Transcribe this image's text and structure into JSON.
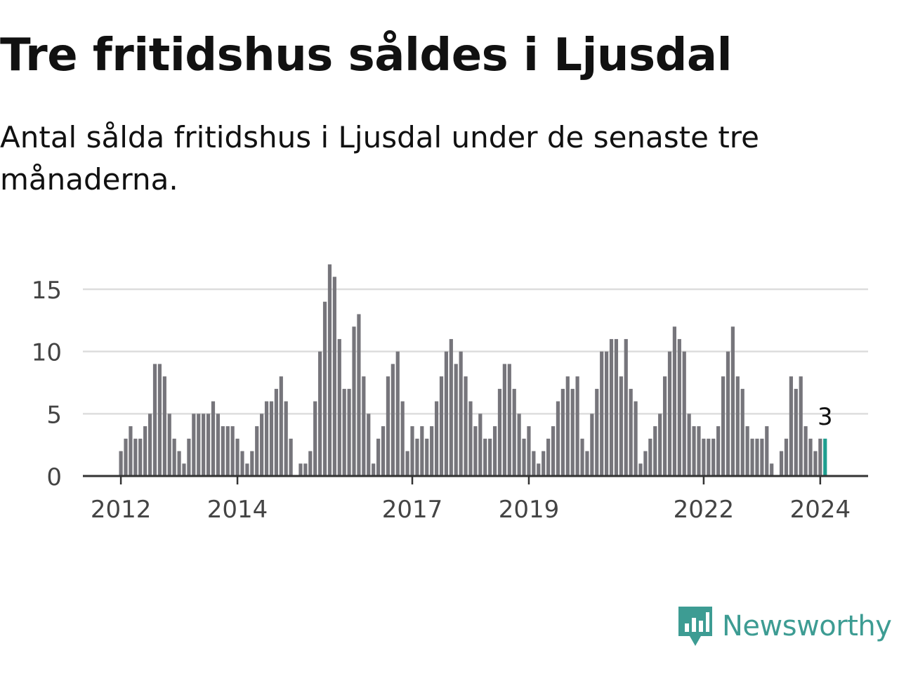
{
  "header": {
    "title": "Tre fritidshus såldes i Ljusdal",
    "subtitle": "Antal sålda fritidshus i Ljusdal under de senaste tre månaderna."
  },
  "brand": {
    "name": "Newsworthy",
    "color": "#3d9c93"
  },
  "colors": {
    "bar": "#76757b",
    "highlight": "#1e9e8f",
    "grid": "#dddddd",
    "axis": "#333333"
  },
  "chart_data": {
    "type": "bar",
    "title": "Tre fritidshus såldes i Ljusdal",
    "subtitle": "Antal sålda fritidshus i Ljusdal under de senaste tre månaderna.",
    "xlabel": "",
    "ylabel": "",
    "ylim": [
      0,
      17
    ],
    "yticks": [
      0,
      5,
      10,
      15
    ],
    "xtick_labels": [
      "2012",
      "2014",
      "2017",
      "2019",
      "2022",
      "2024"
    ],
    "grid": true,
    "start": "2012-01",
    "frequency": "monthly",
    "values": [
      2,
      3,
      4,
      3,
      3,
      4,
      5,
      9,
      9,
      8,
      5,
      3,
      2,
      1,
      3,
      5,
      5,
      5,
      5,
      6,
      5,
      4,
      4,
      4,
      3,
      2,
      1,
      2,
      4,
      5,
      6,
      6,
      7,
      8,
      6,
      3,
      0,
      1,
      1,
      2,
      6,
      10,
      14,
      17,
      16,
      11,
      7,
      7,
      12,
      13,
      8,
      5,
      1,
      3,
      4,
      8,
      9,
      10,
      6,
      2,
      4,
      3,
      4,
      3,
      4,
      6,
      8,
      10,
      11,
      9,
      10,
      8,
      6,
      4,
      5,
      3,
      3,
      4,
      7,
      9,
      9,
      7,
      5,
      3,
      4,
      2,
      1,
      2,
      3,
      4,
      6,
      7,
      8,
      7,
      8,
      3,
      2,
      5,
      7,
      10,
      10,
      11,
      11,
      8,
      11,
      7,
      6,
      1,
      2,
      3,
      4,
      5,
      8,
      10,
      12,
      11,
      10,
      5,
      4,
      4,
      3,
      3,
      3,
      4,
      8,
      10,
      12,
      8,
      7,
      4,
      3,
      3,
      3,
      4,
      1,
      0,
      2,
      3,
      8,
      7,
      8,
      4,
      3,
      2,
      3,
      3
    ],
    "highlight_last": 1,
    "highlight_label": "3"
  }
}
